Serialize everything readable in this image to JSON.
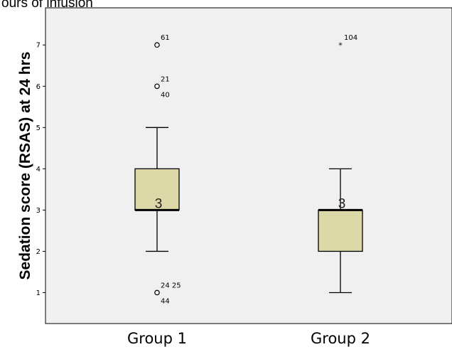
{
  "chart_data": {
    "type": "boxplot",
    "title": "ours of infusion",
    "ylabel": "Sedation score (RSAS) at 24 hrs",
    "categories": [
      "Group 1",
      "Group 2"
    ],
    "ylim": [
      0.25,
      7.9
    ],
    "yticks": [
      1,
      2,
      3,
      4,
      5,
      6,
      7
    ],
    "box_color": "#ddd8a8",
    "plot_background": "#f0f0f0",
    "groups": [
      {
        "name": "Group 1",
        "whisker_low": 2,
        "q1": 3,
        "median": 3,
        "q3": 4,
        "whisker_high": 5,
        "median_label": "3",
        "outliers": [
          {
            "value": 7,
            "marker": "circle",
            "label": "61"
          },
          {
            "value": 6,
            "marker": "circle",
            "label": "21",
            "label2": "40"
          },
          {
            "value": 1,
            "marker": "circle",
            "label": "24 25",
            "label2": "44"
          }
        ]
      },
      {
        "name": "Group 2",
        "whisker_low": 1,
        "q1": 2,
        "median": 3,
        "q3": 3,
        "whisker_high": 4,
        "median_label": "3",
        "outliers": [
          {
            "value": 7,
            "marker": "star",
            "label": "104"
          }
        ]
      }
    ]
  }
}
